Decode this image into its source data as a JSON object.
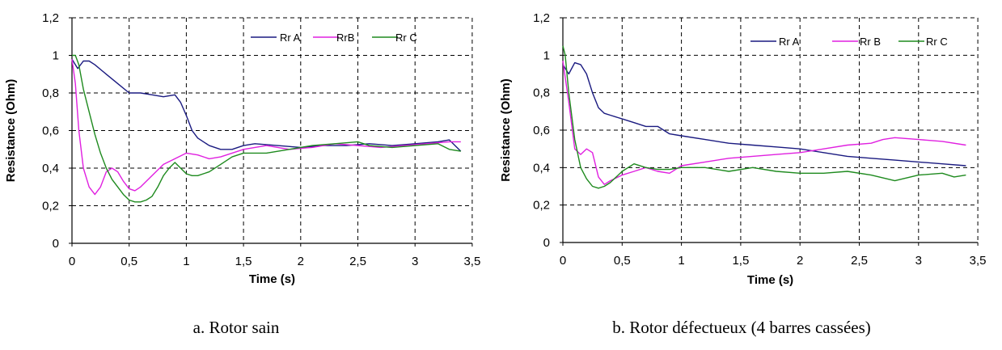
{
  "chart_data": [
    {
      "type": "line",
      "caption": "a. Rotor sain",
      "xlabel": "Time (s)",
      "ylabel": "Resistance (Ohm)",
      "xlim": [
        0,
        3.5
      ],
      "ylim": [
        0,
        1.2
      ],
      "x_ticks": [
        "0",
        "0,5",
        "1",
        "1,5",
        "2",
        "2,5",
        "3",
        "3,5"
      ],
      "y_ticks": [
        "0",
        "0,2",
        "0,4",
        "0,6",
        "0,8",
        "1",
        "1,2"
      ],
      "grid": true,
      "legend_position": "top-right",
      "series": [
        {
          "name": "Rr A",
          "color": "#1a1a80",
          "x": [
            0,
            0.05,
            0.1,
            0.15,
            0.2,
            0.3,
            0.4,
            0.5,
            0.6,
            0.7,
            0.8,
            0.9,
            0.95,
            1.0,
            1.05,
            1.1,
            1.2,
            1.3,
            1.4,
            1.5,
            1.6,
            1.8,
            2.0,
            2.2,
            2.4,
            2.6,
            2.8,
            3.0,
            3.2,
            3.3,
            3.4
          ],
          "y": [
            0.98,
            0.93,
            0.97,
            0.97,
            0.95,
            0.9,
            0.85,
            0.8,
            0.8,
            0.79,
            0.78,
            0.79,
            0.75,
            0.68,
            0.6,
            0.56,
            0.52,
            0.5,
            0.5,
            0.52,
            0.53,
            0.52,
            0.51,
            0.52,
            0.52,
            0.53,
            0.52,
            0.53,
            0.54,
            0.55,
            0.49
          ]
        },
        {
          "name": "RrB",
          "color": "#e020e0",
          "x": [
            0,
            0.03,
            0.06,
            0.1,
            0.15,
            0.2,
            0.25,
            0.3,
            0.35,
            0.4,
            0.45,
            0.5,
            0.55,
            0.6,
            0.7,
            0.8,
            0.9,
            1.0,
            1.1,
            1.2,
            1.3,
            1.4,
            1.5,
            1.7,
            1.9,
            2.1,
            2.3,
            2.5,
            2.7,
            2.9,
            3.1,
            3.3,
            3.4
          ],
          "y": [
            0.98,
            0.85,
            0.6,
            0.4,
            0.3,
            0.26,
            0.3,
            0.38,
            0.4,
            0.38,
            0.33,
            0.29,
            0.28,
            0.3,
            0.36,
            0.42,
            0.45,
            0.48,
            0.47,
            0.45,
            0.46,
            0.48,
            0.5,
            0.52,
            0.5,
            0.51,
            0.53,
            0.52,
            0.51,
            0.52,
            0.53,
            0.54,
            0.54
          ]
        },
        {
          "name": "Rr C",
          "color": "#1e8a1e",
          "x": [
            0,
            0.03,
            0.06,
            0.1,
            0.15,
            0.2,
            0.25,
            0.3,
            0.35,
            0.4,
            0.45,
            0.5,
            0.55,
            0.6,
            0.65,
            0.7,
            0.75,
            0.8,
            0.85,
            0.9,
            0.95,
            1.0,
            1.05,
            1.1,
            1.2,
            1.3,
            1.4,
            1.5,
            1.7,
            1.9,
            2.1,
            2.3,
            2.5,
            2.6,
            2.8,
            3.0,
            3.2,
            3.3,
            3.4
          ],
          "y": [
            1.0,
            1.0,
            0.95,
            0.82,
            0.7,
            0.58,
            0.48,
            0.4,
            0.34,
            0.3,
            0.26,
            0.23,
            0.22,
            0.22,
            0.23,
            0.25,
            0.3,
            0.36,
            0.4,
            0.43,
            0.4,
            0.37,
            0.36,
            0.36,
            0.38,
            0.42,
            0.46,
            0.48,
            0.48,
            0.5,
            0.52,
            0.53,
            0.54,
            0.52,
            0.51,
            0.52,
            0.53,
            0.5,
            0.49
          ]
        }
      ]
    },
    {
      "type": "line",
      "caption": "b. Rotor défectueux (4 barres cassées)",
      "xlabel": "Time (s)",
      "ylabel": "Resistance (Ohm)",
      "xlim": [
        0,
        3.5
      ],
      "ylim": [
        0,
        1.2
      ],
      "x_ticks": [
        "0",
        "0,5",
        "1",
        "1,5",
        "2",
        "2,5",
        "3",
        "3,5"
      ],
      "y_ticks": [
        "0",
        "0,2",
        "0,4",
        "0,6",
        "0,8",
        "1",
        "1,2"
      ],
      "grid": true,
      "legend_position": "top-right",
      "series": [
        {
          "name": "Rr A",
          "color": "#1a1a80",
          "x": [
            0,
            0.05,
            0.1,
            0.15,
            0.2,
            0.25,
            0.3,
            0.35,
            0.4,
            0.5,
            0.6,
            0.7,
            0.8,
            0.9,
            1.0,
            1.2,
            1.4,
            1.6,
            1.8,
            2.0,
            2.2,
            2.4,
            2.6,
            2.8,
            3.0,
            3.2,
            3.4
          ],
          "y": [
            0.95,
            0.9,
            0.96,
            0.95,
            0.9,
            0.8,
            0.72,
            0.69,
            0.68,
            0.66,
            0.64,
            0.62,
            0.62,
            0.58,
            0.57,
            0.55,
            0.53,
            0.52,
            0.51,
            0.5,
            0.48,
            0.46,
            0.45,
            0.44,
            0.43,
            0.42,
            0.41
          ]
        },
        {
          "name": "Rr B",
          "color": "#e020e0",
          "x": [
            0,
            0.05,
            0.1,
            0.15,
            0.2,
            0.25,
            0.3,
            0.35,
            0.4,
            0.5,
            0.6,
            0.7,
            0.8,
            0.9,
            1.0,
            1.2,
            1.4,
            1.6,
            1.8,
            2.0,
            2.2,
            2.4,
            2.6,
            2.7,
            2.8,
            3.0,
            3.2,
            3.4
          ],
          "y": [
            0.97,
            0.75,
            0.5,
            0.47,
            0.5,
            0.48,
            0.35,
            0.31,
            0.33,
            0.36,
            0.38,
            0.4,
            0.38,
            0.37,
            0.41,
            0.43,
            0.45,
            0.46,
            0.47,
            0.48,
            0.5,
            0.52,
            0.53,
            0.55,
            0.56,
            0.55,
            0.54,
            0.52
          ]
        },
        {
          "name": "Rr C",
          "color": "#1e8a1e",
          "x": [
            0,
            0.02,
            0.05,
            0.1,
            0.15,
            0.2,
            0.25,
            0.3,
            0.35,
            0.4,
            0.5,
            0.6,
            0.7,
            0.8,
            0.9,
            1.0,
            1.2,
            1.4,
            1.6,
            1.8,
            2.0,
            2.2,
            2.4,
            2.6,
            2.8,
            3.0,
            3.2,
            3.3,
            3.4
          ],
          "y": [
            1.05,
            1.0,
            0.8,
            0.55,
            0.4,
            0.34,
            0.3,
            0.29,
            0.3,
            0.32,
            0.38,
            0.42,
            0.4,
            0.39,
            0.39,
            0.4,
            0.4,
            0.38,
            0.4,
            0.38,
            0.37,
            0.37,
            0.38,
            0.36,
            0.33,
            0.36,
            0.37,
            0.35,
            0.36
          ]
        }
      ]
    }
  ]
}
